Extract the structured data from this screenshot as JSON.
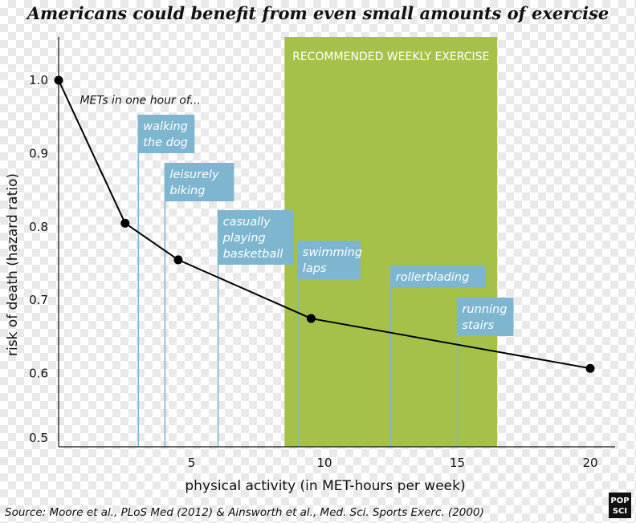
{
  "chart_data": {
    "type": "line",
    "title": "Americans could benefit from even small amounts of exercise",
    "xlabel": "physical activity (in MET-hours per week)",
    "ylabel": "risk of death  (hazard ratio)",
    "xlim": [
      0,
      21
    ],
    "ylim": [
      0.5,
      1.05
    ],
    "x_ticks": [
      5,
      10,
      15,
      20
    ],
    "x_tick_labels": [
      "5",
      "10",
      "15",
      "20"
    ],
    "y_ticks": [
      0.5,
      0.6,
      0.7,
      0.8,
      0.9,
      1.0
    ],
    "y_tick_labels": [
      "0.5",
      "0.6",
      "0.7",
      "0.8",
      "0.9",
      "1.0"
    ],
    "series": [
      {
        "x": [
          0,
          2.5,
          4.5,
          9.5,
          20
        ],
        "y": [
          1.0,
          0.805,
          0.755,
          0.675,
          0.607
        ]
      }
    ],
    "annotations": [
      {
        "text": "METs in one hour of...",
        "x": 0.8,
        "y": 0.985
      },
      {
        "text": "walking the dog",
        "lines": [
          "walking",
          "the dog"
        ],
        "x": 3.0
      },
      {
        "text": "leisurely biking",
        "lines": [
          "leisurely",
          "biking"
        ],
        "x": 4.0
      },
      {
        "text": "casually playing basketball",
        "lines": [
          "casually",
          "playing",
          "basketball"
        ],
        "x": 6.0
      },
      {
        "text": "swimming laps",
        "lines": [
          "swimming",
          "laps"
        ],
        "x": 9.0
      },
      {
        "text": "rollerblading",
        "lines": [
          "rollerblading"
        ],
        "x": 12.5
      },
      {
        "text": "running stairs",
        "lines": [
          "running",
          "stairs"
        ],
        "x": 15.0
      }
    ],
    "shaded_region": {
      "label": "RECOMMENDED WEEKLY EXERCISE",
      "x": [
        8.5,
        16.5
      ]
    },
    "grid": false,
    "legend": "none",
    "colors": {
      "line": "#000000",
      "activity_box": "#7eb6d0",
      "activity_line": "#7eb6d0",
      "shade": "#a6c14a",
      "shade_label": "#ffffff",
      "badge": "#111111"
    }
  },
  "source": "Source: Moore et al., PLoS Med (2012) & Ainsworth et al., Med. Sci. Sports Exerc. (2000)",
  "brand": "POP SCI"
}
